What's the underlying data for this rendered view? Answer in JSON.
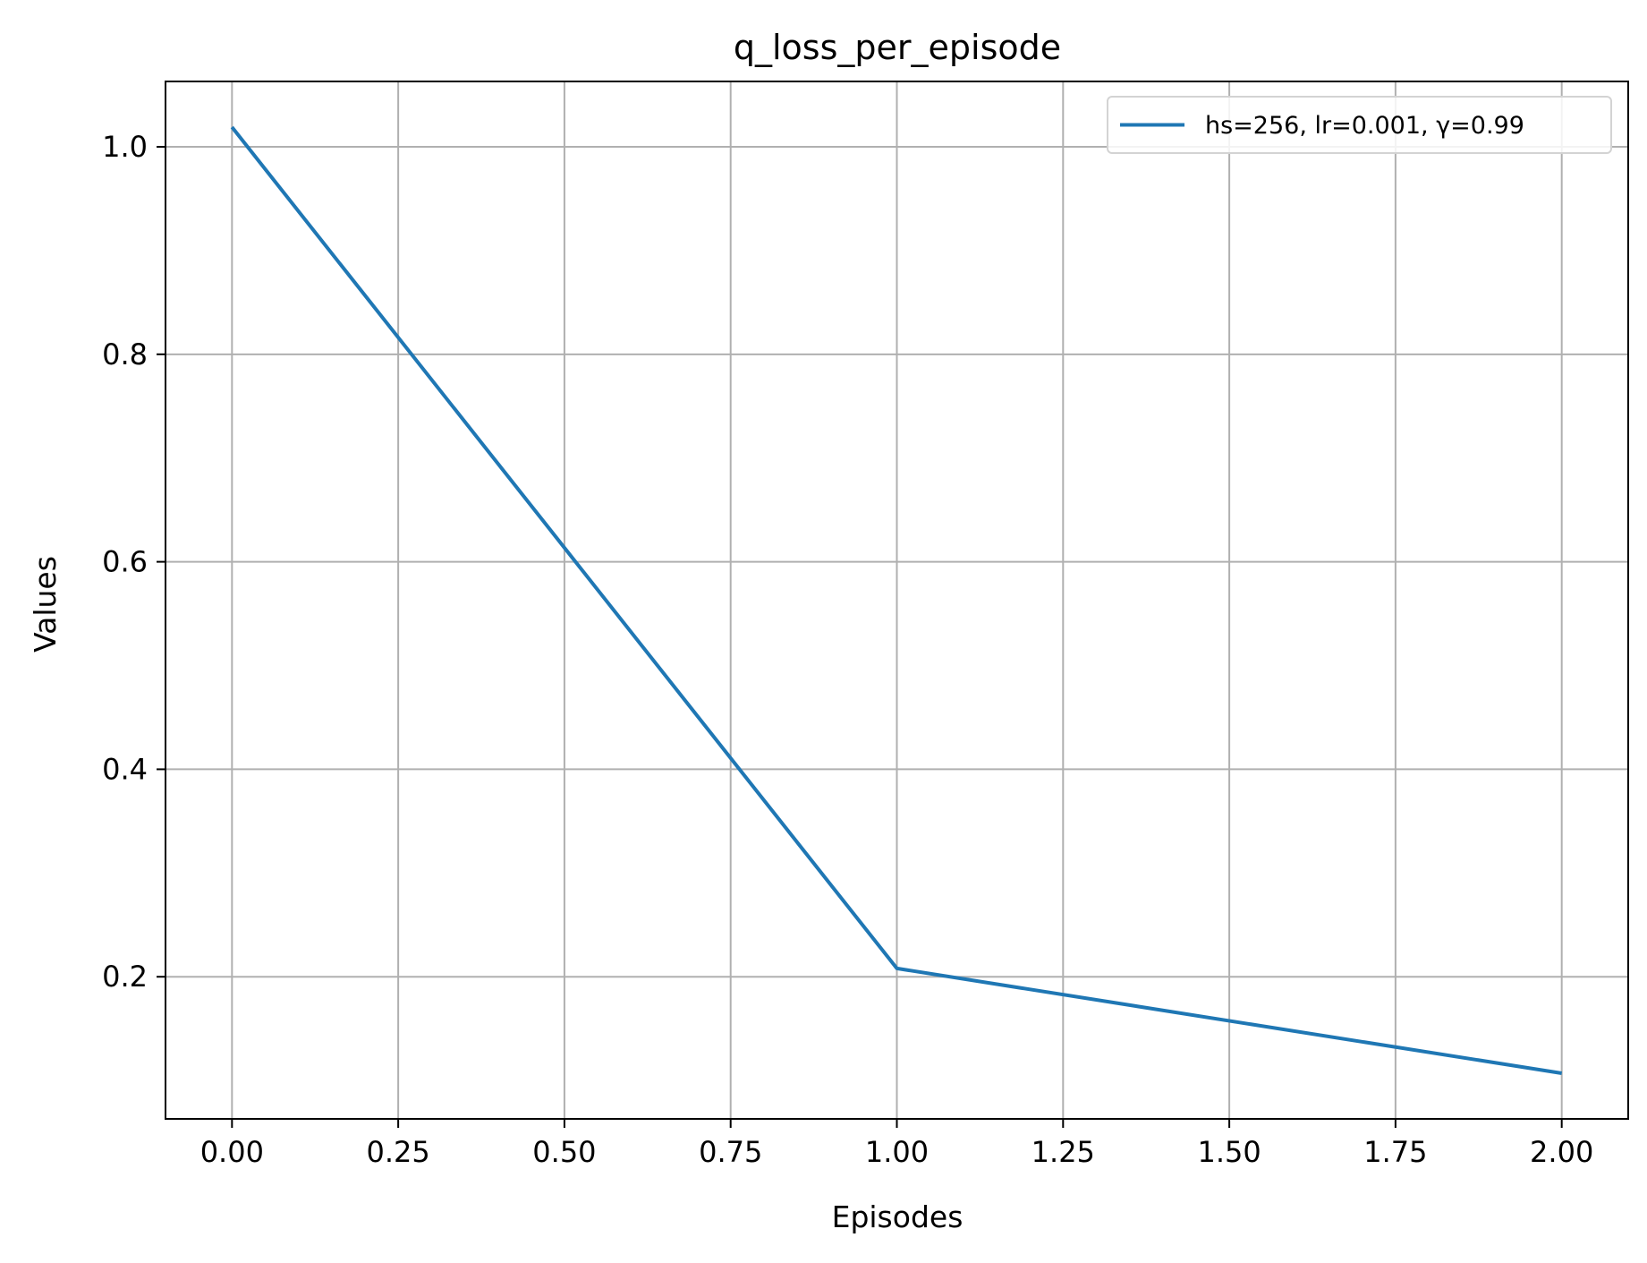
{
  "chart_data": {
    "type": "line",
    "title": "q_loss_per_episode",
    "xlabel": "Episodes",
    "ylabel": "Values",
    "xlim": [
      -0.1,
      2.1
    ],
    "ylim": [
      0.063,
      1.063
    ],
    "xticks": [
      0,
      0.25,
      0.5,
      0.75,
      1.0,
      1.25,
      1.5,
      1.75,
      2.0
    ],
    "xtick_labels": [
      "0.00",
      "0.25",
      "0.50",
      "0.75",
      "1.00",
      "1.25",
      "1.50",
      "1.75",
      "2.00"
    ],
    "yticks": [
      0.2,
      0.4,
      0.6,
      0.8,
      1.0
    ],
    "ytick_labels": [
      "0.2",
      "0.4",
      "0.6",
      "0.8",
      "1.0"
    ],
    "grid": true,
    "legend_position": "top-right",
    "series": [
      {
        "name": "hs=256, lr=0.001, γ=0.99",
        "color": "#1f77b4",
        "x": [
          0,
          1,
          2
        ],
        "y": [
          1.019,
          0.208,
          0.107
        ]
      }
    ]
  }
}
